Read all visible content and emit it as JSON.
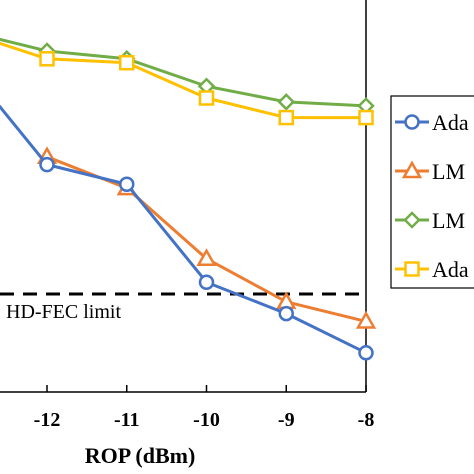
{
  "chart_data": {
    "type": "line",
    "xlabel": "ROP (dBm)",
    "ylabel": "",
    "x": [
      -12,
      -11,
      -10,
      -9,
      -8
    ],
    "xlim": [
      -12.55,
      -8.0
    ],
    "ylim": [
      0.0,
      1.0
    ],
    "series": [
      {
        "name": "Ada",
        "color": "#4472C4",
        "marker": "circle",
        "points": [
          [
            -12.6,
            0.73
          ],
          [
            -12,
            0.58
          ],
          [
            -11,
            0.53
          ],
          [
            -10,
            0.28
          ],
          [
            -9,
            0.2
          ],
          [
            -8,
            0.1
          ]
        ]
      },
      {
        "name": "LM",
        "color": "#ED7D31",
        "marker": "triangle",
        "points": [
          [
            -12,
            0.6
          ],
          [
            -11,
            0.52
          ],
          [
            -10,
            0.34
          ],
          [
            -9,
            0.23
          ],
          [
            -8,
            0.18
          ]
        ]
      },
      {
        "name": "LM",
        "color": "#70AD47",
        "marker": "diamond",
        "points": [
          [
            -12.6,
            0.9
          ],
          [
            -12,
            0.87
          ],
          [
            -11,
            0.85
          ],
          [
            -10,
            0.78
          ],
          [
            -9,
            0.74
          ],
          [
            -8,
            0.73
          ]
        ]
      },
      {
        "name": "Ada",
        "color": "#FFC000",
        "marker": "square",
        "points": [
          [
            -12.6,
            0.89
          ],
          [
            -12,
            0.85
          ],
          [
            -11,
            0.84
          ],
          [
            -10,
            0.75
          ],
          [
            -9,
            0.7
          ],
          [
            -8,
            0.7
          ]
        ]
      }
    ],
    "reference_line": {
      "label": "HD-FEC limit",
      "y": 0.25,
      "style": "dashed"
    },
    "legend": {
      "position": "right",
      "entries": [
        "Ada",
        "LM",
        "LM",
        "Ada"
      ]
    },
    "grid": false
  }
}
